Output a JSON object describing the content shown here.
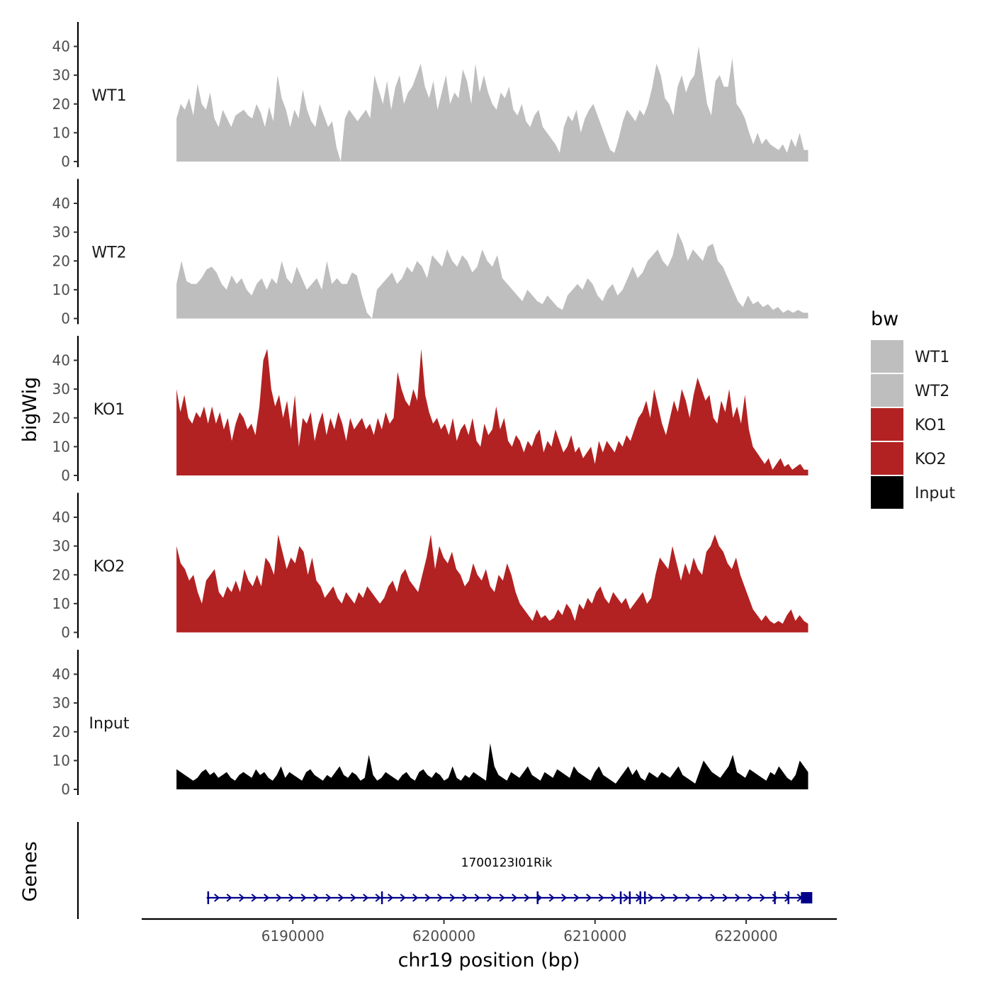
{
  "chart_data": {
    "type": "area",
    "ylabel": "bigWig",
    "xlabel": "chr19 position (bp)",
    "xlim": [
      6180000,
      6226000
    ],
    "x_range": [
      6182300,
      6224100
    ],
    "ylim": [
      0,
      48
    ],
    "y_ticks": [
      0,
      10,
      20,
      30,
      40
    ],
    "y_tick_labels": [
      "0",
      "10",
      "20",
      "30",
      "40"
    ],
    "x_ticks": [
      6190000,
      6200000,
      6210000,
      6220000
    ],
    "x_tick_labels": [
      "6190000",
      "6200000",
      "6210000",
      "6220000"
    ],
    "tracks": [
      {
        "name": "WT1",
        "color": "#bebebe",
        "values": [
          15,
          20,
          18,
          22,
          16,
          27,
          20,
          18,
          24,
          15,
          12,
          18,
          15,
          12,
          16,
          17,
          18,
          16,
          15,
          20,
          17,
          12,
          19,
          14,
          30,
          22,
          18,
          12,
          18,
          15,
          25,
          18,
          14,
          12,
          20,
          16,
          12,
          14,
          5,
          0,
          15,
          18,
          16,
          14,
          16,
          18,
          15,
          30,
          25,
          20,
          28,
          18,
          26,
          30,
          20,
          24,
          26,
          30,
          34,
          26,
          22,
          28,
          18,
          24,
          30,
          20,
          24,
          22,
          32,
          28,
          20,
          34,
          24,
          30,
          24,
          20,
          18,
          24,
          22,
          26,
          18,
          16,
          20,
          14,
          12,
          16,
          18,
          12,
          10,
          8,
          6,
          3,
          12,
          16,
          14,
          18,
          10,
          15,
          18,
          20,
          16,
          12,
          8,
          4,
          3,
          8,
          14,
          18,
          16,
          14,
          18,
          16,
          20,
          26,
          34,
          30,
          22,
          20,
          16,
          26,
          30,
          24,
          28,
          30,
          40,
          30,
          20,
          16,
          28,
          30,
          26,
          26,
          36,
          20,
          18,
          15,
          10,
          6,
          10,
          6,
          8,
          6,
          5,
          4,
          6,
          3,
          8,
          5,
          10,
          4,
          4
        ]
      },
      {
        "name": "WT2",
        "color": "#bebebe",
        "values": [
          12,
          20,
          13,
          12,
          12,
          14,
          17,
          18,
          16,
          12,
          10,
          15,
          12,
          14,
          10,
          8,
          12,
          14,
          10,
          14,
          12,
          20,
          14,
          12,
          18,
          14,
          10,
          12,
          14,
          10,
          20,
          12,
          14,
          12,
          12,
          16,
          15,
          8,
          2,
          0,
          10,
          12,
          14,
          16,
          12,
          14,
          18,
          16,
          20,
          18,
          14,
          22,
          20,
          18,
          24,
          20,
          18,
          22,
          20,
          16,
          18,
          24,
          20,
          18,
          22,
          14,
          12,
          10,
          8,
          6,
          10,
          8,
          6,
          5,
          8,
          6,
          4,
          3,
          8,
          10,
          12,
          10,
          14,
          12,
          8,
          6,
          10,
          12,
          8,
          10,
          14,
          18,
          14,
          16,
          20,
          22,
          24,
          20,
          18,
          22,
          30,
          26,
          20,
          24,
          22,
          20,
          25,
          26,
          20,
          18,
          14,
          10,
          6,
          4,
          8,
          5,
          6,
          4,
          5,
          3,
          4,
          2,
          3,
          2,
          3,
          2,
          2
        ]
      },
      {
        "name": "KO1",
        "color": "#b22222",
        "values": [
          30,
          22,
          28,
          20,
          18,
          22,
          20,
          24,
          18,
          24,
          18,
          22,
          16,
          20,
          12,
          18,
          22,
          20,
          16,
          18,
          14,
          24,
          40,
          44,
          30,
          24,
          28,
          20,
          26,
          16,
          28,
          10,
          20,
          18,
          22,
          12,
          18,
          22,
          14,
          20,
          16,
          22,
          18,
          12,
          20,
          16,
          18,
          20,
          16,
          18,
          14,
          20,
          16,
          22,
          18,
          20,
          36,
          30,
          26,
          24,
          30,
          26,
          44,
          28,
          22,
          18,
          20,
          16,
          18,
          14,
          20,
          12,
          16,
          18,
          14,
          20,
          12,
          10,
          18,
          14,
          16,
          24,
          16,
          20,
          12,
          10,
          14,
          12,
          8,
          12,
          10,
          14,
          16,
          8,
          12,
          10,
          16,
          12,
          8,
          10,
          14,
          8,
          10,
          6,
          8,
          10,
          4,
          12,
          8,
          12,
          10,
          8,
          12,
          10,
          14,
          12,
          16,
          20,
          22,
          26,
          20,
          30,
          24,
          18,
          14,
          20,
          26,
          22,
          30,
          26,
          20,
          28,
          34,
          30,
          26,
          28,
          20,
          18,
          26,
          22,
          30,
          20,
          24,
          18,
          28,
          16,
          10,
          8,
          6,
          4,
          6,
          2,
          4,
          6,
          3,
          4,
          2,
          3,
          4,
          2,
          2
        ]
      },
      {
        "name": "KO2",
        "color": "#b22222",
        "values": [
          30,
          24,
          22,
          18,
          20,
          14,
          10,
          18,
          20,
          22,
          14,
          12,
          16,
          14,
          18,
          14,
          22,
          18,
          16,
          20,
          16,
          26,
          24,
          20,
          34,
          28,
          22,
          26,
          24,
          30,
          28,
          20,
          26,
          18,
          16,
          12,
          14,
          16,
          12,
          10,
          14,
          12,
          10,
          14,
          12,
          16,
          14,
          12,
          10,
          12,
          16,
          18,
          14,
          20,
          22,
          18,
          16,
          14,
          20,
          26,
          34,
          22,
          30,
          26,
          24,
          28,
          22,
          20,
          16,
          18,
          24,
          20,
          18,
          22,
          16,
          14,
          20,
          18,
          24,
          20,
          14,
          10,
          8,
          6,
          4,
          8,
          5,
          6,
          4,
          5,
          8,
          6,
          10,
          8,
          4,
          10,
          8,
          12,
          10,
          14,
          16,
          12,
          10,
          14,
          12,
          10,
          12,
          8,
          10,
          12,
          14,
          10,
          12,
          20,
          26,
          24,
          22,
          30,
          24,
          18,
          24,
          20,
          26,
          22,
          20,
          28,
          30,
          34,
          30,
          28,
          24,
          22,
          26,
          20,
          16,
          12,
          8,
          6,
          4,
          6,
          4,
          3,
          4,
          3,
          6,
          8,
          4,
          6,
          4,
          3
        ]
      },
      {
        "name": "Input",
        "color": "#000000",
        "values": [
          7,
          6,
          5,
          4,
          3,
          4,
          6,
          7,
          5,
          6,
          4,
          5,
          6,
          4,
          3,
          5,
          6,
          5,
          4,
          7,
          5,
          6,
          4,
          3,
          5,
          8,
          4,
          6,
          5,
          4,
          3,
          6,
          7,
          5,
          4,
          3,
          5,
          4,
          6,
          8,
          5,
          4,
          6,
          5,
          3,
          4,
          12,
          5,
          3,
          4,
          6,
          5,
          4,
          3,
          5,
          6,
          4,
          3,
          6,
          7,
          5,
          4,
          6,
          5,
          3,
          4,
          8,
          4,
          3,
          5,
          4,
          6,
          5,
          4,
          3,
          16,
          8,
          5,
          4,
          3,
          6,
          5,
          4,
          6,
          8,
          5,
          4,
          3,
          6,
          5,
          4,
          7,
          6,
          5,
          4,
          8,
          6,
          5,
          4,
          3,
          6,
          8,
          5,
          4,
          3,
          2,
          4,
          6,
          8,
          5,
          7,
          4,
          3,
          6,
          5,
          4,
          6,
          5,
          4,
          6,
          8,
          5,
          4,
          3,
          2,
          6,
          10,
          8,
          6,
          5,
          4,
          6,
          8,
          12,
          6,
          5,
          4,
          7,
          6,
          5,
          4,
          3,
          6,
          5,
          8,
          6,
          4,
          3,
          5,
          10,
          8,
          6
        ]
      }
    ],
    "legend": {
      "title": "bw",
      "position": "right",
      "entries": [
        {
          "label": "WT1",
          "color": "#bebebe"
        },
        {
          "label": "WT2",
          "color": "#bebebe"
        },
        {
          "label": "KO1",
          "color": "#b22222"
        },
        {
          "label": "KO2",
          "color": "#b22222"
        },
        {
          "label": "Input",
          "color": "#000000"
        }
      ]
    },
    "genes": {
      "panel_label": "Genes",
      "color": "#00008b",
      "items": [
        {
          "name": "1700123I01Rik",
          "start": 6184300,
          "end": 6224000,
          "strand": "+",
          "exons": [
            6184400,
            6195900,
            6206200,
            6211700,
            6212300,
            6213000,
            6213300,
            6221900,
            6222800
          ]
        }
      ]
    }
  }
}
